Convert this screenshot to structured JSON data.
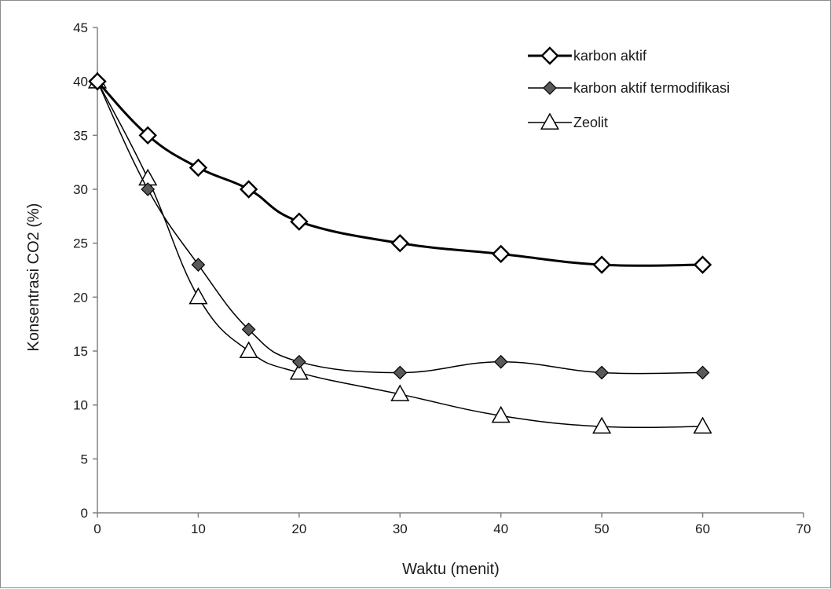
{
  "chart_data": {
    "type": "line",
    "xlabel": "Waktu (menit)",
    "ylabel": "Konsentrasi CO2  (%)",
    "xlim": [
      0,
      70
    ],
    "ylim": [
      0,
      45
    ],
    "x_ticks": [
      0,
      10,
      20,
      30,
      40,
      50,
      60,
      70
    ],
    "y_ticks": [
      0,
      5,
      10,
      15,
      20,
      25,
      30,
      35,
      40,
      45
    ],
    "grid": false,
    "smooth": true,
    "legend_position": "top-right",
    "x": [
      0,
      5,
      10,
      15,
      20,
      30,
      40,
      50,
      60
    ],
    "series": [
      {
        "name": "karbon aktif",
        "marker": "diamond-open",
        "color": "#000000",
        "line_weight": "thick",
        "values": [
          40,
          35,
          32,
          30,
          27,
          25,
          24,
          23,
          23
        ]
      },
      {
        "name": "karbon aktif termodifikasi",
        "marker": "diamond-filled",
        "color": "#000000",
        "fill": "#595959",
        "line_weight": "thin",
        "values": [
          40,
          30,
          23,
          17,
          14,
          13,
          14,
          13,
          13
        ]
      },
      {
        "name": "Zeolit",
        "marker": "triangle-open",
        "color": "#000000",
        "line_weight": "thin",
        "values": [
          40,
          31,
          20,
          15,
          13,
          11,
          9,
          8,
          8
        ]
      }
    ]
  }
}
